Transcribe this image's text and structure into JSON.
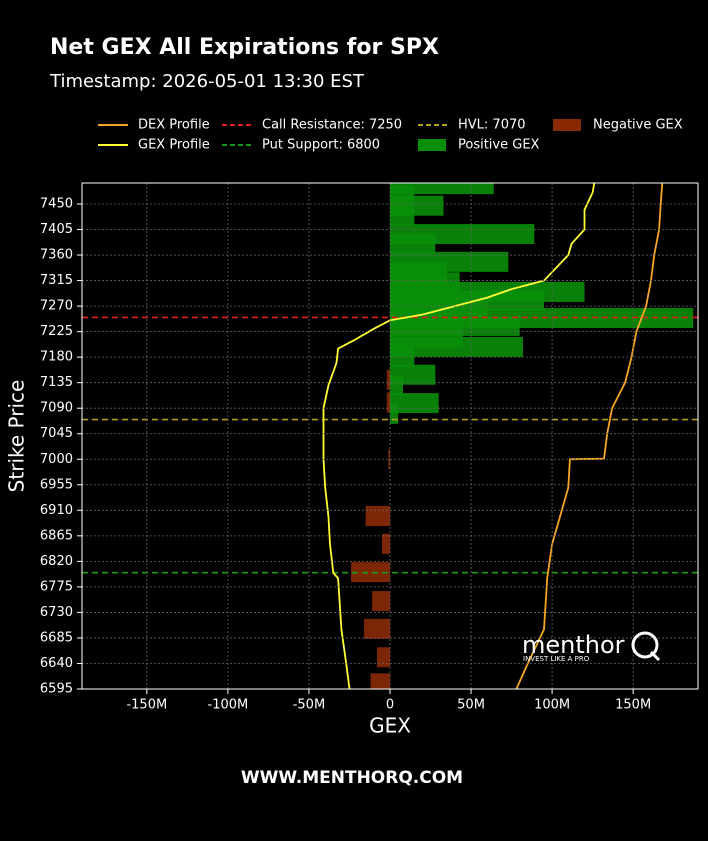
{
  "chart_data": {
    "type": "hbar",
    "title": "Net GEX All Expirations for SPX",
    "subtitle": "Timestamp: 2026-05-01 13:30 EST",
    "xlabel": "GEX",
    "ylabel": "Strike Price",
    "footer": "WWW.MENTHORQ.COM",
    "logo": "menthor",
    "logo_tagline": "INVEST LIKE A PRO",
    "grid": true,
    "xlim": [
      -190,
      190
    ],
    "xticks": [
      {
        "value": -150,
        "label": "-150M"
      },
      {
        "value": -100,
        "label": "-100M"
      },
      {
        "value": -50,
        "label": "-50M"
      },
      0,
      {
        "value": 50,
        "label": "50M"
      },
      {
        "value": 100,
        "label": "100M"
      },
      {
        "value": 150,
        "label": "150M"
      }
    ],
    "ylim": [
      6595,
      7487
    ],
    "yticks": [
      6595,
      6640,
      6685,
      6730,
      6775,
      6820,
      6865,
      6910,
      6955,
      7000,
      7045,
      7090,
      7135,
      7180,
      7225,
      7270,
      7315,
      7360,
      7405,
      7450
    ],
    "series": [
      {
        "name": "Positive GEX",
        "color": "#0a8f0a",
        "strikes": [
          7485,
          7465,
          7447,
          7430,
          7397,
          7380,
          7348,
          7330,
          7312,
          7295,
          7280,
          7265,
          7249,
          7235,
          7215,
          7198,
          7180,
          7149,
          7130,
          7099,
          7080
        ],
        "values": [
          64,
          15,
          33,
          15,
          89,
          28,
          73,
          35,
          43,
          120,
          95,
          60,
          187,
          80,
          45,
          82,
          15,
          28,
          8,
          30,
          5
        ]
      },
      {
        "name": "Negative GEX",
        "color": "#8a2a05",
        "strikes": [
          7140,
          7100,
          7000,
          6900,
          6851,
          6801,
          6750,
          6701,
          6651,
          6605
        ],
        "values": [
          -2,
          -2,
          -1,
          -15,
          -5,
          -24,
          -11,
          -16,
          -8,
          -12
        ]
      }
    ],
    "lines": [
      {
        "name": "DEX Profile",
        "color": "#f5a623",
        "strikes": [
          6595,
          6640,
          6700,
          6790,
          6850,
          6900,
          6950,
          7000,
          7001,
          7045,
          7090,
          7135,
          7180,
          7225,
          7270,
          7315,
          7360,
          7405,
          7450,
          7487
        ],
        "values": [
          78,
          85,
          95,
          97,
          100,
          105,
          110,
          111,
          132,
          134,
          137,
          145,
          149,
          152,
          158,
          161,
          163,
          166,
          167,
          168
        ]
      },
      {
        "name": "GEX Profile",
        "color": "#ffff33",
        "strikes": [
          6595,
          6640,
          6700,
          6790,
          6800,
          6850,
          6900,
          6950,
          7000,
          7045,
          7090,
          7130,
          7170,
          7195,
          7210,
          7230,
          7245,
          7255,
          7270,
          7285,
          7300,
          7315,
          7330,
          7360,
          7380,
          7405,
          7440,
          7470,
          7487
        ],
        "values": [
          -25,
          -27,
          -30,
          -32,
          -35,
          -37,
          -38,
          -40,
          -41,
          -41,
          -41,
          -38,
          -33,
          -32,
          -22,
          -10,
          0,
          20,
          40,
          60,
          75,
          95,
          100,
          110,
          112,
          120,
          120,
          125,
          126
        ]
      }
    ],
    "ref_lines": [
      {
        "name": "Call Resistance: 7250",
        "value": 7250,
        "color": "#e02020"
      },
      {
        "name": "Put Support: 6800",
        "value": 6800,
        "color": "#1a9a1a"
      },
      {
        "name": "HVL: 7070",
        "value": 7070,
        "color": "#b0a020"
      }
    ]
  }
}
